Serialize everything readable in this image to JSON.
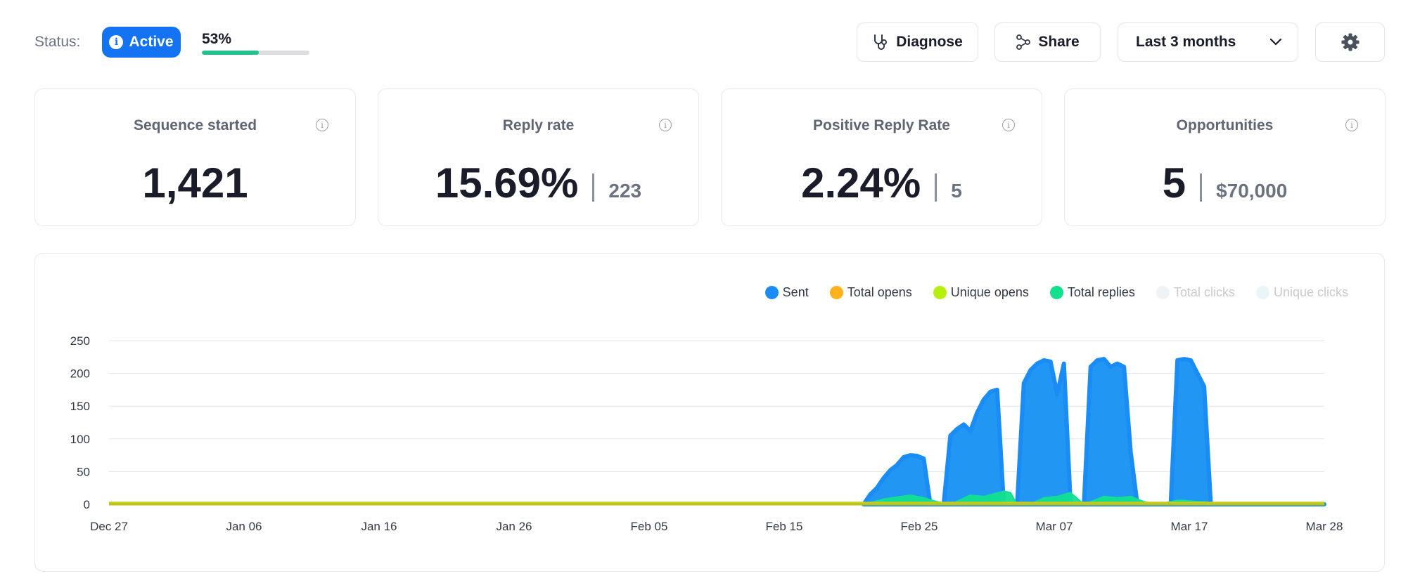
{
  "status": {
    "label": "Status:",
    "badge": "Active",
    "progress_percent": 53,
    "progress_text": "53%",
    "badge_color": "#1473f2",
    "progress_color": "#20c28a"
  },
  "toolbar": {
    "diagnose_label": "Diagnose",
    "share_label": "Share",
    "range_label": "Last 3 months"
  },
  "cards": [
    {
      "title": "Sequence started",
      "value": "1,421",
      "sub": ""
    },
    {
      "title": "Reply rate",
      "value": "15.69%",
      "sub": "223"
    },
    {
      "title": "Positive Reply Rate",
      "value": "2.24%",
      "sub": "5"
    },
    {
      "title": "Opportunities",
      "value": "5",
      "sub": "$70,000"
    }
  ],
  "chart_data": {
    "type": "area",
    "x_ticks": [
      "Dec 27",
      "Jan 06",
      "Jan 16",
      "Jan 26",
      "Feb 05",
      "Feb 15",
      "Feb 25",
      "Mar 07",
      "Mar 17",
      "Mar 28"
    ],
    "y_ticks": [
      0,
      50,
      100,
      150,
      200,
      250
    ],
    "ylim": [
      0,
      250
    ],
    "x_range_days": [
      0,
      91
    ],
    "grid": true,
    "legend_position": "top-right",
    "legend": [
      {
        "name": "Sent",
        "color": "#1a8cf5",
        "visible": true
      },
      {
        "name": "Total opens",
        "color": "#ffb21e",
        "visible": true
      },
      {
        "name": "Unique opens",
        "color": "#b6ef10",
        "visible": true
      },
      {
        "name": "Total replies",
        "color": "#12e08f",
        "visible": true
      },
      {
        "name": "Total clicks",
        "color": "#eef3f8",
        "visible": false
      },
      {
        "name": "Unique clicks",
        "color": "#eaf5f9",
        "visible": false
      }
    ],
    "series": [
      {
        "name": "Sent",
        "x": [
          56.5,
          57.0,
          57.5,
          58.0,
          58.5,
          59.0,
          59.5,
          60.0,
          60.5,
          61.0,
          61.5,
          62.0,
          62.5,
          63.0,
          63.5,
          64.0,
          64.5,
          65.0,
          65.5,
          66.0,
          66.5,
          67.0,
          67.5,
          68.0,
          68.5,
          69.0,
          69.5,
          70.0,
          70.5,
          71.0,
          71.5,
          72.0,
          72.5,
          73.0,
          73.5,
          74.0,
          74.5,
          75.0,
          75.5,
          76.0,
          76.5,
          77.0,
          77.5,
          78.0,
          78.5,
          79.0,
          79.5,
          80.0,
          80.5,
          81.0,
          81.5,
          82.0,
          82.5,
          83.0,
          83.5,
          84.0,
          84.5,
          85.0,
          85.5,
          86.0,
          86.5,
          87.0,
          87.5,
          88.0,
          88.5,
          89.0,
          89.5,
          90.0,
          90.5,
          91.0
        ],
        "y": [
          0,
          15,
          25,
          40,
          52,
          60,
          72,
          75,
          74,
          70,
          0,
          0,
          0,
          105,
          115,
          122,
          112,
          140,
          160,
          172,
          175,
          0,
          0,
          0,
          185,
          205,
          215,
          220,
          218,
          168,
          215,
          0,
          0,
          0,
          210,
          220,
          222,
          210,
          215,
          210,
          80,
          0,
          0,
          0,
          0,
          0,
          0,
          220,
          222,
          220,
          200,
          180,
          0,
          0,
          0,
          0,
          0,
          0,
          0,
          0,
          0,
          0,
          0,
          0,
          0,
          0,
          0,
          0,
          0,
          0
        ]
      },
      {
        "name": "Total replies",
        "x": [
          56.5,
          58.0,
          60.0,
          61.0,
          62.0,
          63.0,
          64.5,
          65.5,
          67.0,
          67.5,
          68.0,
          69.0,
          70.0,
          71.0,
          72.0,
          73.0,
          74.5,
          75.5,
          76.5,
          77.5,
          78.5,
          80.0,
          80.5,
          81.5,
          82.0,
          83.0,
          84.0,
          85.0,
          86.0,
          87.0,
          88.0,
          89.0,
          90.0,
          91.0
        ],
        "y": [
          0,
          8,
          14,
          10,
          4,
          0,
          14,
          12,
          20,
          18,
          0,
          0,
          10,
          12,
          18,
          0,
          12,
          10,
          12,
          4,
          0,
          6,
          6,
          4,
          4,
          0,
          0,
          0,
          0,
          0,
          0,
          0,
          0,
          0
        ]
      },
      {
        "name": "Total opens",
        "x": [
          0,
          91
        ],
        "y": [
          4,
          4
        ]
      }
    ]
  }
}
